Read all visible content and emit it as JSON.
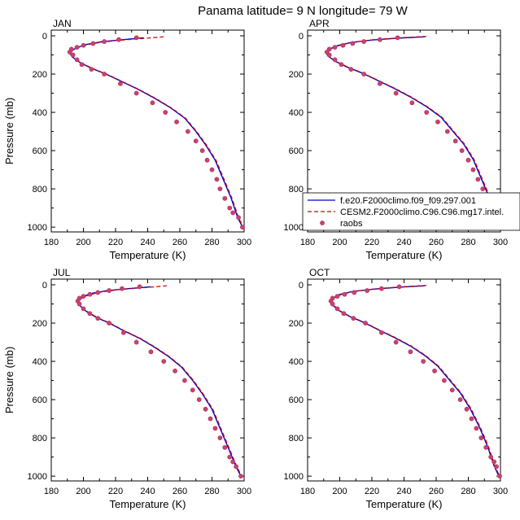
{
  "title": "Panama  latitude= 9 N longitude= 79 W",
  "colors": {
    "model1": "#0000cc",
    "model2": "#cc0000",
    "raobs": "#b03060",
    "raobs_fill": "#c8436e"
  },
  "legend": {
    "placement": "inside APR panel, bottom",
    "entries": [
      {
        "label": "f.e20.F2000climo.f09_f09.297.001",
        "style": "solid-line",
        "color": "#0000cc"
      },
      {
        "label": "CESM2.F2000climo.C96.C96.mg17.intel.",
        "style": "dashed-line",
        "color": "#cc0000"
      },
      {
        "label": "raobs",
        "style": "marker",
        "color": "#b03060"
      }
    ]
  },
  "chart_data": [
    {
      "type": "line",
      "month": "JAN",
      "xlabel": "Temperature (K)",
      "ylabel": "Pressure (mb)",
      "xlim": [
        180,
        300
      ],
      "ylim": [
        1025,
        0
      ],
      "y_reversed": true,
      "xticks": [
        180,
        200,
        220,
        240,
        260,
        280,
        300
      ],
      "yticks": [
        0,
        200,
        400,
        600,
        800,
        1000
      ],
      "series": [
        {
          "name": "f.e20.F2000climo.f09_f09.297.001",
          "style": "solid",
          "x": [
            237.5,
            225.0,
            212.0,
            202.0,
            196.5,
            193.0,
            191.5,
            193.0,
            198.0,
            205.0,
            214.0,
            224.0,
            234.0,
            244.0,
            254.0,
            263.0,
            270.0,
            276.0,
            282.0,
            287.0,
            292.0,
            296.0,
            299.0
          ],
          "y": [
            10,
            20,
            30,
            45,
            60,
            75,
            90,
            110,
            140,
            170,
            200,
            240,
            280,
            325,
            375,
            430,
            500,
            570,
            650,
            750,
            850,
            950,
            1000
          ]
        },
        {
          "name": "CESM2.F2000climo.C96.C96.mg17.intel.",
          "style": "dashed",
          "x": [
            250.0,
            236.0,
            220.0,
            206.0,
            198.0,
            193.5,
            192.0,
            193.5,
            198.5,
            205.5,
            214.5,
            224.5,
            234.5,
            244.5,
            254.5,
            263.5,
            270.5,
            276.5,
            282.5,
            287.5,
            292.5,
            296.5,
            299.5
          ],
          "y": [
            5,
            15,
            25,
            40,
            58,
            75,
            90,
            110,
            140,
            170,
            200,
            240,
            280,
            325,
            375,
            430,
            500,
            570,
            650,
            750,
            850,
            950,
            1000
          ]
        },
        {
          "name": "raobs",
          "style": "marker",
          "x": [
            233.0,
            222.0,
            213.0,
            206.0,
            200.0,
            196.0,
            192.5,
            191.5,
            193.5,
            196.0,
            199.0,
            205.0,
            213.0,
            223.0,
            233.0,
            243.0,
            251.0,
            258.0,
            265.0,
            270.0,
            274.0,
            277.0,
            280.0,
            283.0,
            285.0,
            288.0,
            291.0,
            293.0,
            296.5,
            299.0
          ],
          "y": [
            10,
            20,
            30,
            40,
            50,
            60,
            70,
            85,
            100,
            125,
            150,
            175,
            200,
            250,
            300,
            350,
            400,
            450,
            500,
            550,
            600,
            650,
            700,
            750,
            800,
            850,
            900,
            925,
            950,
            1000
          ]
        }
      ]
    },
    {
      "type": "line",
      "month": "APR",
      "xlabel": "Temperature (K)",
      "ylabel": "",
      "xlim": [
        180,
        300
      ],
      "ylim": [
        1025,
        0
      ],
      "y_reversed": true,
      "xticks": [
        180,
        200,
        220,
        240,
        260,
        280,
        300
      ],
      "yticks": [
        0,
        200,
        400,
        600,
        800,
        1000
      ],
      "series": [
        {
          "name": "f.e20.F2000climo.f09_f09.297.001",
          "style": "solid",
          "x": [
            253.0,
            237.0,
            220.0,
            207.0,
            199.0,
            194.0,
            191.5,
            192.5,
            197.5,
            205.0,
            214.0,
            224.0,
            234.0,
            244.0,
            254.0,
            263.0,
            270.0,
            277.0,
            283.0,
            288.0,
            293.0,
            297.0,
            300.0
          ],
          "y": [
            5,
            12,
            22,
            35,
            50,
            68,
            85,
            105,
            135,
            165,
            195,
            235,
            275,
            320,
            370,
            425,
            495,
            565,
            645,
            745,
            845,
            945,
            1000
          ]
        },
        {
          "name": "CESM2.F2000climo.C96.C96.mg17.intel.",
          "style": "dashed",
          "x": [
            254.0,
            238.0,
            221.0,
            208.0,
            200.0,
            194.5,
            192.0,
            193.0,
            198.0,
            205.5,
            214.5,
            224.5,
            234.5,
            244.5,
            254.5,
            263.5,
            270.5,
            277.5,
            283.5,
            288.5,
            293.5,
            297.5,
            300.0
          ],
          "y": [
            3,
            10,
            20,
            34,
            50,
            68,
            85,
            105,
            135,
            165,
            195,
            235,
            275,
            320,
            370,
            425,
            495,
            565,
            645,
            745,
            845,
            945,
            1000
          ]
        },
        {
          "name": "raobs",
          "style": "marker",
          "x": [
            236.0,
            225.0,
            215.0,
            208.0,
            202.0,
            197.0,
            193.5,
            192.0,
            193.5,
            197.0,
            201.0,
            207.0,
            215.0,
            225.0,
            235.0,
            245.0,
            254.0,
            261.0,
            267.0,
            272.0,
            276.0,
            280.0,
            283.0,
            286.0,
            289.0,
            292.0,
            295.0,
            297.0,
            298.5,
            300.0
          ],
          "y": [
            10,
            20,
            30,
            40,
            50,
            60,
            70,
            85,
            100,
            125,
            150,
            175,
            200,
            250,
            300,
            350,
            400,
            450,
            500,
            550,
            600,
            650,
            700,
            750,
            800,
            850,
            900,
            925,
            950,
            1000
          ]
        }
      ]
    },
    {
      "type": "line",
      "month": "JUL",
      "xlabel": "Temperature (K)",
      "ylabel": "Pressure (mb)",
      "xlim": [
        180,
        300
      ],
      "ylim": [
        1025,
        0
      ],
      "y_reversed": true,
      "xticks": [
        180,
        200,
        220,
        240,
        260,
        280,
        300
      ],
      "yticks": [
        0,
        200,
        400,
        600,
        800,
        1000
      ],
      "series": [
        {
          "name": "f.e20.F2000climo.f09_f09.297.001",
          "style": "solid",
          "x": [
            242.0,
            228.0,
            215.0,
            205.0,
            200.0,
            197.5,
            196.5,
            198.0,
            202.0,
            208.0,
            216.0,
            225.0,
            235.0,
            244.0,
            253.0,
            261.0,
            268.0,
            274.0,
            280.0,
            285.0,
            290.0,
            295.0,
            298.0
          ],
          "y": [
            10,
            20,
            30,
            45,
            60,
            75,
            90,
            110,
            140,
            170,
            200,
            240,
            280,
            325,
            375,
            430,
            500,
            570,
            650,
            750,
            850,
            950,
            1000
          ]
        },
        {
          "name": "CESM2.F2000climo.C96.C96.mg17.intel.",
          "style": "dashed",
          "x": [
            252.0,
            238.0,
            222.0,
            209.0,
            202.0,
            198.0,
            197.0,
            198.5,
            202.5,
            208.5,
            216.5,
            225.5,
            235.5,
            244.5,
            253.5,
            261.5,
            268.5,
            274.5,
            280.5,
            285.5,
            290.5,
            295.5,
            298.5
          ],
          "y": [
            5,
            15,
            25,
            40,
            58,
            75,
            90,
            110,
            140,
            170,
            200,
            240,
            280,
            325,
            375,
            430,
            500,
            570,
            650,
            750,
            850,
            950,
            1000
          ]
        },
        {
          "name": "raobs",
          "style": "marker",
          "x": [
            235.0,
            224.0,
            216.0,
            209.0,
            204.0,
            200.0,
            197.5,
            196.5,
            197.5,
            200.0,
            204.0,
            209.0,
            216.0,
            225.0,
            233.0,
            242.0,
            250.0,
            257.0,
            263.0,
            268.0,
            272.0,
            276.0,
            279.0,
            282.0,
            285.0,
            288.0,
            291.0,
            293.0,
            295.0,
            298.0
          ],
          "y": [
            10,
            20,
            30,
            40,
            50,
            60,
            70,
            85,
            100,
            125,
            150,
            175,
            200,
            250,
            300,
            350,
            400,
            450,
            500,
            550,
            600,
            650,
            700,
            750,
            800,
            850,
            900,
            925,
            950,
            1000
          ]
        }
      ]
    },
    {
      "type": "line",
      "month": "OCT",
      "xlabel": "Temperature (K)",
      "ylabel": "",
      "xlim": [
        180,
        300
      ],
      "ylim": [
        1025,
        0
      ],
      "y_reversed": true,
      "xticks": [
        180,
        200,
        220,
        240,
        260,
        280,
        300
      ],
      "yticks": [
        0,
        200,
        400,
        600,
        800,
        1000
      ],
      "series": [
        {
          "name": "f.e20.F2000climo.f09_f09.297.001",
          "style": "solid",
          "x": [
            253.0,
            238.0,
            222.0,
            208.0,
            200.0,
            196.0,
            194.5,
            195.5,
            199.5,
            206.0,
            214.5,
            224.0,
            234.0,
            244.0,
            253.0,
            261.0,
            268.0,
            275.0,
            281.0,
            287.0,
            292.0,
            296.0,
            299.0
          ],
          "y": [
            5,
            12,
            22,
            35,
            50,
            68,
            85,
            105,
            135,
            165,
            195,
            235,
            275,
            320,
            370,
            425,
            495,
            565,
            645,
            745,
            845,
            945,
            1000
          ]
        },
        {
          "name": "CESM2.F2000climo.C96.C96.mg17.intel.",
          "style": "dashed",
          "x": [
            254.0,
            239.0,
            223.0,
            209.0,
            201.0,
            196.5,
            195.0,
            196.0,
            200.0,
            206.5,
            215.0,
            224.5,
            234.5,
            244.5,
            253.5,
            261.5,
            268.5,
            275.5,
            281.5,
            287.5,
            292.5,
            296.5,
            299.5
          ],
          "y": [
            3,
            10,
            20,
            34,
            50,
            68,
            85,
            105,
            135,
            165,
            195,
            235,
            275,
            320,
            370,
            425,
            495,
            565,
            645,
            745,
            845,
            945,
            1000
          ]
        },
        {
          "name": "raobs",
          "style": "marker",
          "x": [
            237.0,
            226.0,
            217.0,
            209.0,
            203.0,
            198.5,
            195.5,
            194.5,
            195.5,
            198.5,
            202.5,
            208.5,
            216.0,
            226.0,
            235.0,
            244.0,
            252.0,
            259.0,
            265.0,
            270.0,
            275.0,
            279.0,
            282.0,
            285.0,
            288.0,
            291.0,
            294.0,
            296.0,
            297.5,
            299.5
          ],
          "y": [
            10,
            20,
            30,
            40,
            50,
            60,
            70,
            85,
            100,
            125,
            150,
            175,
            200,
            250,
            300,
            350,
            400,
            450,
            500,
            550,
            600,
            650,
            700,
            750,
            800,
            850,
            900,
            925,
            950,
            1000
          ]
        }
      ]
    }
  ]
}
